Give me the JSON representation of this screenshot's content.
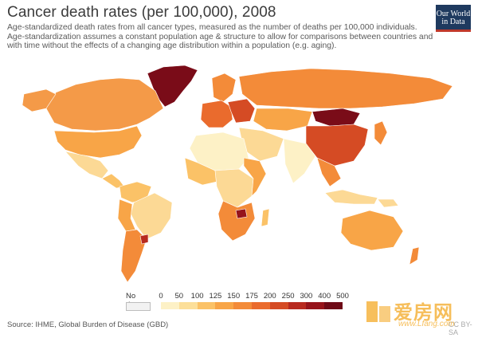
{
  "header": {
    "title": "Cancer death rates (per 100,000), 2008",
    "subtitle_lines": [
      "Age-standardized death rates from all cancer types, measured as the number of deaths per 100,000 individuals.",
      "Age-standardization assumes a constant population age & structure to allow for comparisons between countries and",
      "with time without the effects of a changing age distribution within a population (e.g. aging)."
    ]
  },
  "logo": {
    "line1": "Our World",
    "line2": "in Data"
  },
  "legend": {
    "no_data_label": "No data",
    "ticks": [
      "0",
      "50",
      "100",
      "125",
      "150",
      "175",
      "200",
      "250",
      "300",
      "400",
      "500"
    ],
    "colors": [
      "#fdf1c6",
      "#fcdf99",
      "#fbc267",
      "#f8a547",
      "#f38b39",
      "#ea6b2d",
      "#d54b24",
      "#b82a1f",
      "#96141b",
      "#6e0a17"
    ]
  },
  "footer": {
    "source": "Source: IHME, Global Burden of Disease (GBD)",
    "license": "CC BY-SA"
  },
  "watermark": {
    "brand": "爱房网",
    "url": "www.Lfang.com"
  }
}
